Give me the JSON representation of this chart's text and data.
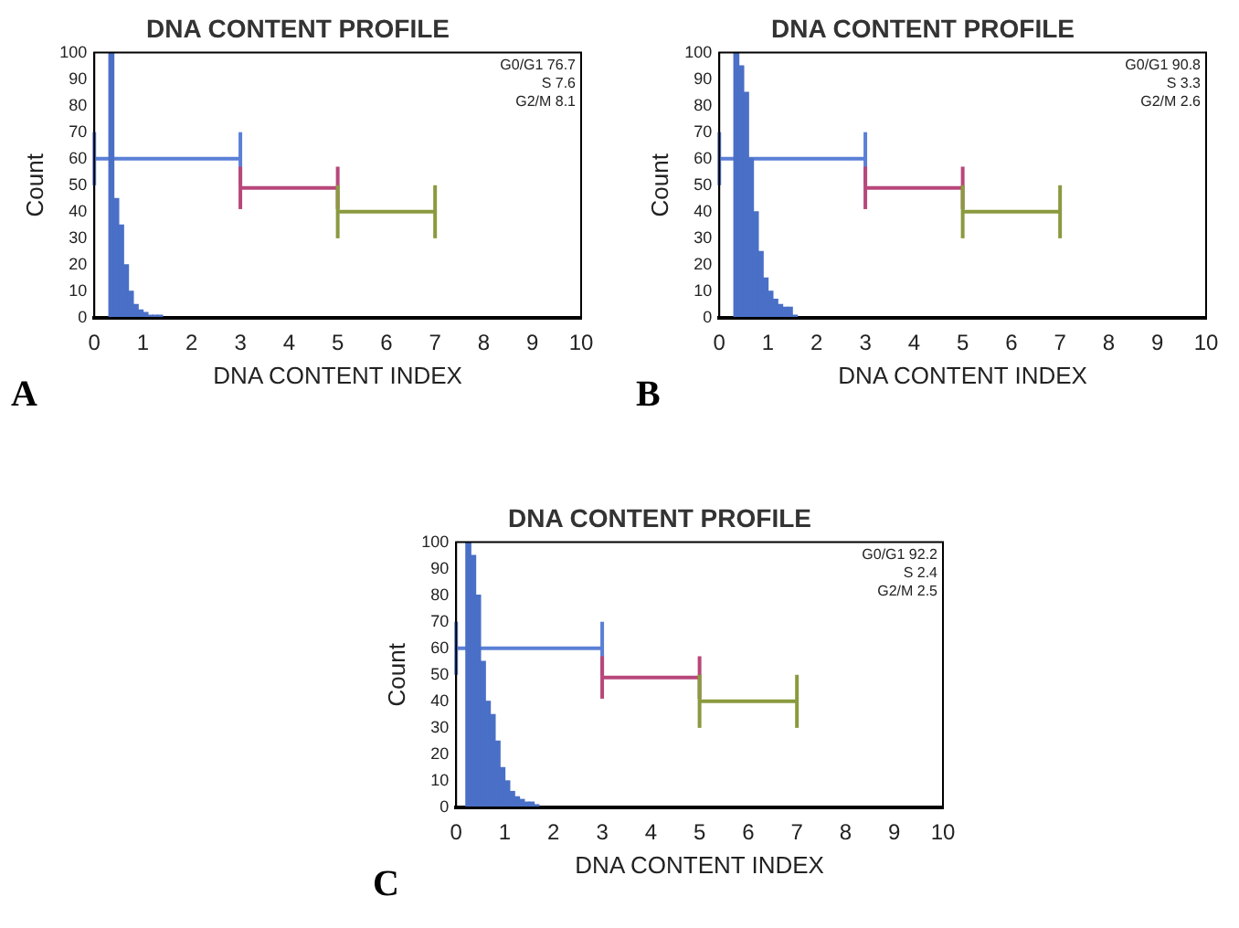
{
  "chart_data": [
    {
      "type": "histogram",
      "title": "DNA CONTENT PROFILE",
      "xlabel": "DNA CONTENT INDEX",
      "ylabel": "Count",
      "color": "#4a6fc7",
      "xlim": [
        0,
        10
      ],
      "ylim": [
        0,
        100
      ],
      "xticks": [
        0,
        1,
        2,
        3,
        4,
        5,
        6,
        7,
        8,
        9,
        10
      ],
      "yticks": [
        0,
        10,
        20,
        30,
        40,
        50,
        60,
        70,
        80,
        90,
        100
      ],
      "grid": false,
      "bins": [
        0,
        0.1,
        0.2,
        0.3,
        0.4,
        0.5,
        0.6,
        0.7,
        0.8,
        0.9,
        1.0,
        1.1,
        1.2,
        1.3,
        1.4,
        1.5,
        1.6,
        1.7,
        1.8,
        1.9,
        2.0
      ],
      "values": [
        0,
        0,
        0,
        100,
        45,
        35,
        20,
        10,
        5,
        3,
        2,
        1,
        1,
        1,
        0,
        0,
        0,
        0,
        0,
        0
      ],
      "series": [
        {
          "type": "line",
          "color": "#5a7fd6",
          "x": [
            0,
            3
          ],
          "values": [
            60,
            60
          ],
          "errors": [
            10,
            10
          ]
        },
        {
          "type": "line",
          "color": "#b8477a",
          "x": [
            3,
            5
          ],
          "values": [
            49,
            49
          ],
          "errors": [
            8,
            8
          ]
        },
        {
          "type": "line",
          "color": "#8a9a3e",
          "x": [
            5,
            7
          ],
          "values": [
            40,
            40
          ],
          "errors": [
            10,
            10
          ]
        }
      ],
      "annotations": [
        "G0/G1 76.7",
        "S 7.6",
        "G2/M 8.1",
        "A"
      ]
    },
    {
      "type": "histogram",
      "title": "DNA CONTENT PROFILE",
      "xlabel": "DNA CONTENT INDEX",
      "ylabel": "Count",
      "color": "#4a6fc7",
      "xlim": [
        0,
        10
      ],
      "ylim": [
        0,
        100
      ],
      "xticks": [
        0,
        1,
        2,
        3,
        4,
        5,
        6,
        7,
        8,
        9,
        10
      ],
      "yticks": [
        0,
        10,
        20,
        30,
        40,
        50,
        60,
        70,
        80,
        90,
        100
      ],
      "grid": false,
      "bins": [
        0,
        0.1,
        0.2,
        0.3,
        0.4,
        0.5,
        0.6,
        0.7,
        0.8,
        0.9,
        1.0,
        1.1,
        1.2,
        1.3,
        1.4,
        1.5,
        1.6,
        1.7,
        1.8,
        1.9,
        2.0
      ],
      "values": [
        0,
        0,
        0,
        100,
        95,
        85,
        60,
        40,
        25,
        15,
        10,
        7,
        5,
        4,
        4,
        1,
        0,
        0,
        0,
        0
      ],
      "series": [
        {
          "type": "line",
          "color": "#5a7fd6",
          "x": [
            0,
            3
          ],
          "values": [
            60,
            60
          ],
          "errors": [
            10,
            10
          ]
        },
        {
          "type": "line",
          "color": "#b8477a",
          "x": [
            3,
            5
          ],
          "values": [
            49,
            49
          ],
          "errors": [
            8,
            8
          ]
        },
        {
          "type": "line",
          "color": "#8a9a3e",
          "x": [
            5,
            7
          ],
          "values": [
            40,
            40
          ],
          "errors": [
            10,
            10
          ]
        }
      ],
      "annotations": [
        "G0/G1 90.8",
        "S 3.3",
        "G2/M 2.6",
        "B"
      ]
    },
    {
      "type": "histogram",
      "title": "DNA CONTENT PROFILE",
      "xlabel": "DNA CONTENT INDEX",
      "ylabel": "Count",
      "color": "#4a6fc7",
      "xlim": [
        0,
        10
      ],
      "ylim": [
        0,
        100
      ],
      "xticks": [
        0,
        1,
        2,
        3,
        4,
        5,
        6,
        7,
        8,
        9,
        10
      ],
      "yticks": [
        0,
        10,
        20,
        30,
        40,
        50,
        60,
        70,
        80,
        90,
        100
      ],
      "grid": false,
      "bins": [
        0,
        0.1,
        0.2,
        0.3,
        0.4,
        0.5,
        0.6,
        0.7,
        0.8,
        0.9,
        1.0,
        1.1,
        1.2,
        1.3,
        1.4,
        1.5,
        1.6,
        1.7,
        1.8,
        1.9,
        2.0
      ],
      "values": [
        0,
        0,
        100,
        95,
        80,
        55,
        40,
        35,
        25,
        15,
        10,
        6,
        4,
        3,
        2,
        2,
        1,
        0,
        0,
        0
      ],
      "series": [
        {
          "type": "line",
          "color": "#5a7fd6",
          "x": [
            0,
            3
          ],
          "values": [
            60,
            60
          ],
          "errors": [
            10,
            10
          ]
        },
        {
          "type": "line",
          "color": "#b8477a",
          "x": [
            3,
            5
          ],
          "values": [
            49,
            49
          ],
          "errors": [
            8,
            8
          ]
        },
        {
          "type": "line",
          "color": "#8a9a3e",
          "x": [
            5,
            7
          ],
          "values": [
            40,
            40
          ],
          "errors": [
            10,
            10
          ]
        }
      ],
      "annotations": [
        "G0/G1 92.2",
        "S 2.4",
        "G2/M 2.5",
        "C"
      ]
    }
  ]
}
